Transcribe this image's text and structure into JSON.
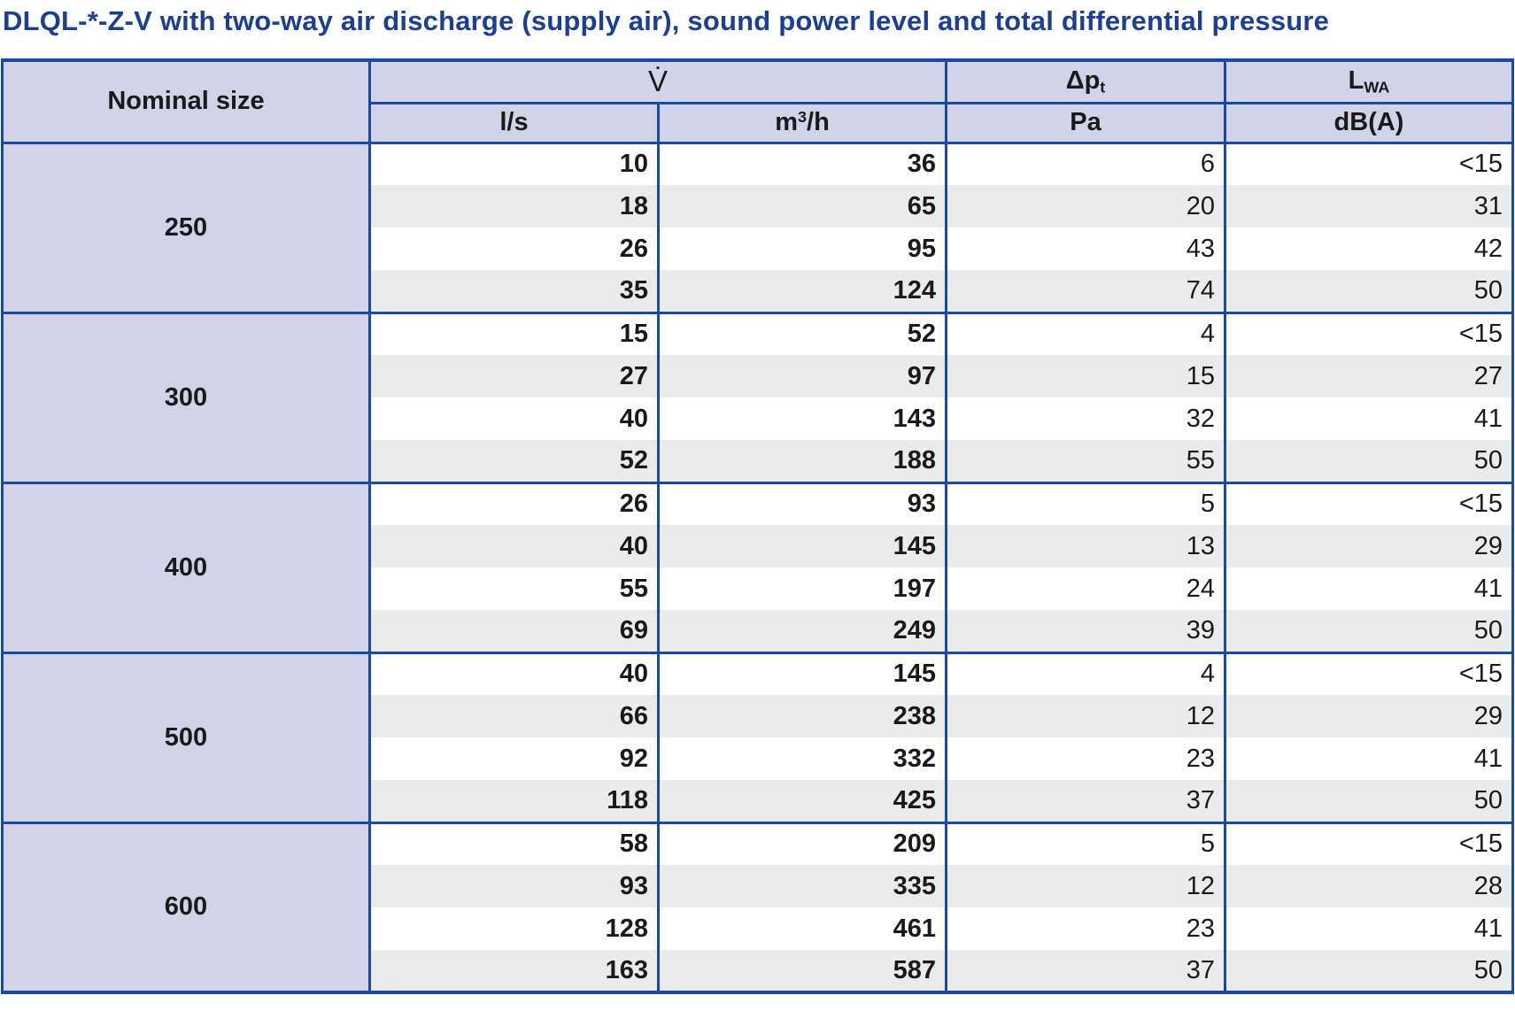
{
  "page": {
    "title": "DLQL-*-Z-V with two-way air discharge (supply air), sound power level and total differential pressure"
  },
  "colors": {
    "title_blue": "#1a3f94",
    "border_blue": "#1a4a9e",
    "header_lavender": "#d2d3e8",
    "row_shade_gray": "#ebebeb",
    "text": "#1a1a1a"
  },
  "table": {
    "header": {
      "nominal_size": "Nominal size",
      "volume_flow_symbol": "V̇",
      "dp": {
        "base": "Δp",
        "sub": "t"
      },
      "lwa": {
        "base": "L",
        "sub": "WA"
      },
      "units": {
        "ls": "l/s",
        "m3h": {
          "base": "m",
          "sup": "3",
          "rest": "/h"
        },
        "pa": "Pa",
        "dba": "dB(A)"
      }
    },
    "columns": [
      "Nominal size",
      "V l/s",
      "V m3/h",
      "Dp_t Pa",
      "L_WA dB(A)"
    ],
    "groups": [
      {
        "size": "250",
        "rows": [
          [
            "10",
            "36",
            "6",
            "<15"
          ],
          [
            "18",
            "65",
            "20",
            "31"
          ],
          [
            "26",
            "95",
            "43",
            "42"
          ],
          [
            "35",
            "124",
            "74",
            "50"
          ]
        ]
      },
      {
        "size": "300",
        "rows": [
          [
            "15",
            "52",
            "4",
            "<15"
          ],
          [
            "27",
            "97",
            "15",
            "27"
          ],
          [
            "40",
            "143",
            "32",
            "41"
          ],
          [
            "52",
            "188",
            "55",
            "50"
          ]
        ]
      },
      {
        "size": "400",
        "rows": [
          [
            "26",
            "93",
            "5",
            "<15"
          ],
          [
            "40",
            "145",
            "13",
            "29"
          ],
          [
            "55",
            "197",
            "24",
            "41"
          ],
          [
            "69",
            "249",
            "39",
            "50"
          ]
        ]
      },
      {
        "size": "500",
        "rows": [
          [
            "40",
            "145",
            "4",
            "<15"
          ],
          [
            "66",
            "238",
            "12",
            "29"
          ],
          [
            "92",
            "332",
            "23",
            "41"
          ],
          [
            "118",
            "425",
            "37",
            "50"
          ]
        ]
      },
      {
        "size": "600",
        "rows": [
          [
            "58",
            "209",
            "5",
            "<15"
          ],
          [
            "93",
            "335",
            "12",
            "28"
          ],
          [
            "128",
            "461",
            "23",
            "41"
          ],
          [
            "163",
            "587",
            "37",
            "50"
          ]
        ]
      }
    ]
  }
}
